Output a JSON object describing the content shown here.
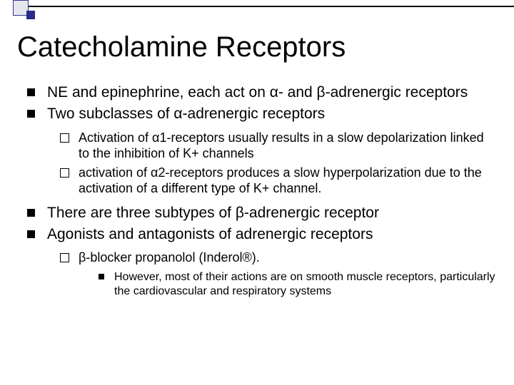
{
  "title": "Catecholamine Receptors",
  "bullets": {
    "b1": "NE and epinephrine, each act on α- and β-adrenergic receptors",
    "b2": "Two subclasses of α-adrenergic receptors",
    "b2_sub1": "Activation of α1-receptors usually results in a slow depolarization linked to the inhibition of K+ channels",
    "b2_sub2": "activation of α2-receptors produces a slow hyperpolarization due to the activation of a different type of K+ channel.",
    "b3": "There are three subtypes of β-adrenergic receptor",
    "b4": "Agonists and antagonists of adrenergic receptors",
    "b4_sub1": "β-blocker propanolol (Inderol®).",
    "b4_sub1_sub1": "However, most of their actions are on smooth muscle receptors, particularly the cardiovascular and respiratory systems"
  },
  "colors": {
    "text": "#000000",
    "background": "#ffffff",
    "accent_light": "#e6e6ef",
    "accent_dark": "#2a2a8a"
  }
}
